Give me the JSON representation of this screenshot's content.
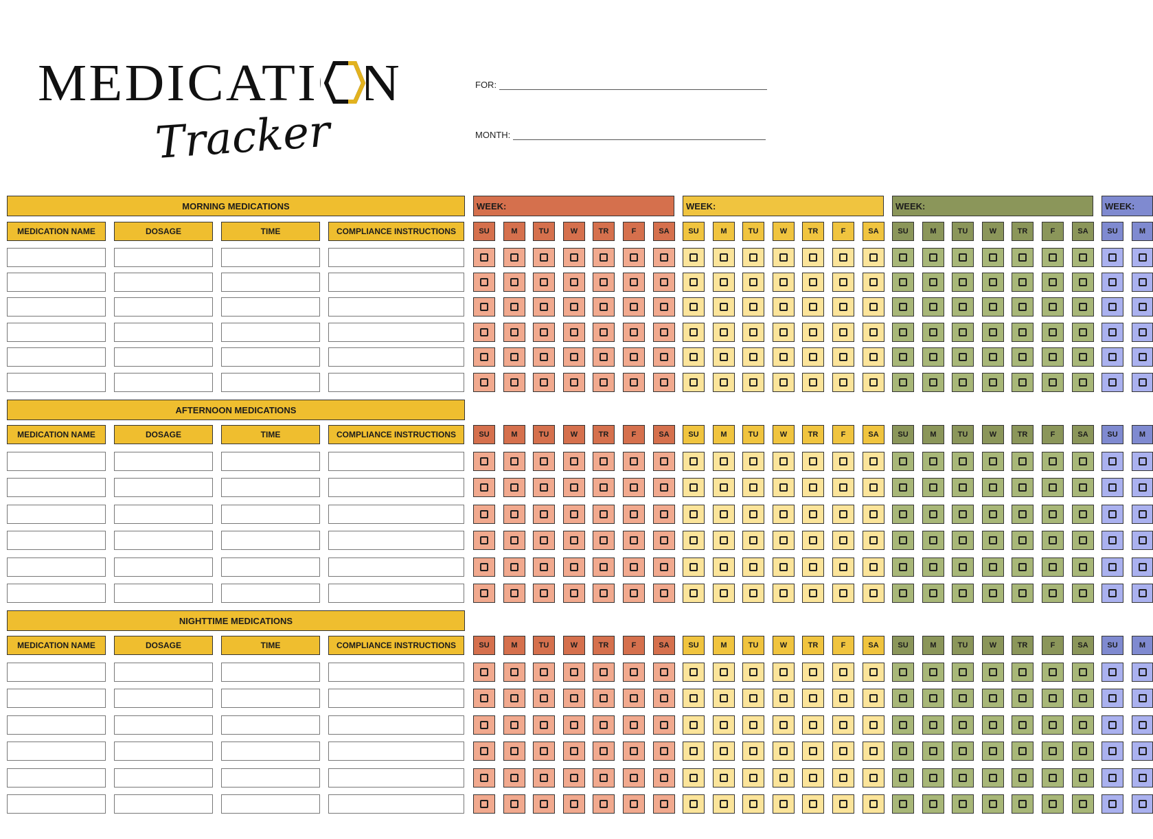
{
  "title": {
    "main": "MEDICATION",
    "script": "Tracker"
  },
  "fields": {
    "for_label": "FOR:",
    "month_label": "MONTH:"
  },
  "columns": [
    "MEDICATION NAME",
    "DOSAGE",
    "TIME",
    "COMPLIANCE INSTRUCTIONS"
  ],
  "sections": [
    {
      "title": "MORNING MEDICATIONS"
    },
    {
      "title": "AFTERNOON MEDICATIONS"
    },
    {
      "title": "NIGHTTIME MEDICATIONS"
    }
  ],
  "week_label": "WEEK:",
  "days": [
    "SU",
    "M",
    "TU",
    "W",
    "TR",
    "F",
    "SA"
  ],
  "last_week_visible_days": [
    "SU",
    "M"
  ],
  "rows_per_section": 6,
  "colors": {
    "heading_gold": "#efbe2f",
    "logo_gold": "#e2b21f",
    "week1": {
      "header": "#d5704d",
      "box": "#f1a98e"
    },
    "week2": {
      "header": "#f0c43f",
      "box": "#fbe49a"
    },
    "week3": {
      "header": "#8b965a",
      "box": "#a8b778"
    },
    "week4": {
      "header": "#7f8ad0",
      "box": "#aab1ef"
    }
  }
}
